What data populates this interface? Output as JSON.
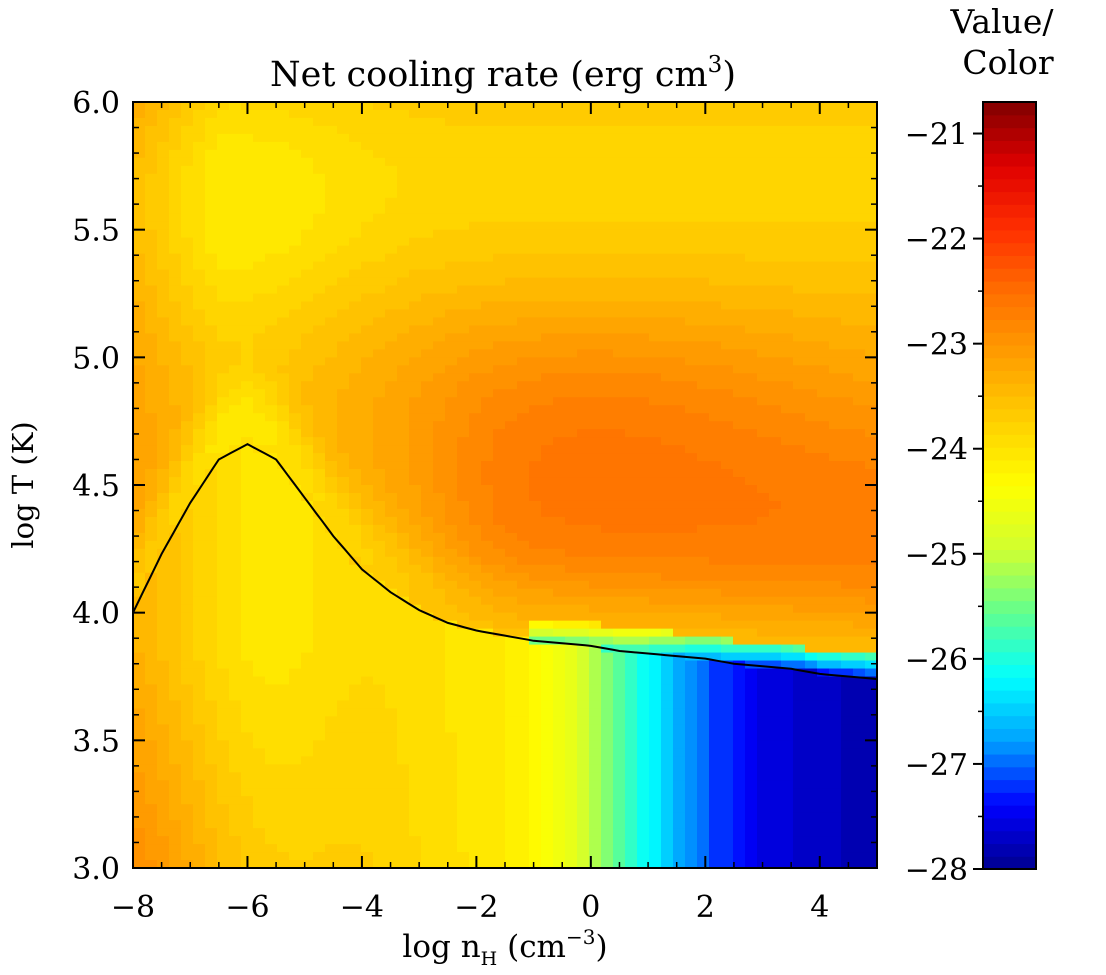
{
  "chart_data": {
    "type": "heatmap",
    "title_main": "Net cooling rate (erg cm",
    "title_sup": "3",
    "title_close": ")",
    "xlabel": {
      "main": "log n",
      "sub": "H",
      "rest": " (cm",
      "sup": "−3",
      "close": ")"
    },
    "ylabel": "log T (K)",
    "xlim": [
      -8,
      5
    ],
    "ylim": [
      3.0,
      6.0
    ],
    "x_ticks": [
      {
        "value": -8,
        "label": "−8"
      },
      {
        "value": -6,
        "label": "−6"
      },
      {
        "value": -4,
        "label": "−4"
      },
      {
        "value": -2,
        "label": "−2"
      },
      {
        "value": 0,
        "label": "0"
      },
      {
        "value": 2,
        "label": "2"
      },
      {
        "value": 4,
        "label": "4"
      }
    ],
    "y_ticks": [
      {
        "value": 3.0,
        "label": "3.0"
      },
      {
        "value": 3.5,
        "label": "3.5"
      },
      {
        "value": 4.0,
        "label": "4.0"
      },
      {
        "value": 4.5,
        "label": "4.5"
      },
      {
        "value": 5.0,
        "label": "5.0"
      },
      {
        "value": 5.5,
        "label": "5.5"
      },
      {
        "value": 6.0,
        "label": "6.0"
      }
    ],
    "colorbar": {
      "title_line1": "Value/",
      "title_line2": "Color",
      "range": [
        -28,
        -20.7
      ],
      "ticks": [
        {
          "value": -21,
          "label": "−21"
        },
        {
          "value": -22,
          "label": "−22"
        },
        {
          "value": -23,
          "label": "−23"
        },
        {
          "value": -24,
          "label": "−24"
        },
        {
          "value": -25,
          "label": "−25"
        },
        {
          "value": -26,
          "label": "−26"
        },
        {
          "value": -27,
          "label": "−27"
        },
        {
          "value": -28,
          "label": "−28"
        }
      ],
      "colors": [
        "#00008f",
        "#0000ff",
        "#00a0ff",
        "#00ffff",
        "#60ff90",
        "#d0ff30",
        "#ffff00",
        "#ffd000",
        "#ffa000",
        "#ff7000",
        "#ff3000",
        "#e00000",
        "#800000"
      ],
      "levels": 60
    },
    "equilibrium_curve": {
      "x": [
        -8,
        -7.5,
        -7,
        -6.5,
        -6,
        -5.5,
        -5,
        -4.5,
        -4,
        -3.5,
        -3,
        -2.5,
        -2,
        -1.5,
        -1,
        -0.5,
        0,
        0.5,
        1,
        1.5,
        2,
        2.5,
        3,
        3.5,
        4,
        4.5,
        5
      ],
      "y": [
        4.0,
        4.23,
        4.43,
        4.6,
        4.66,
        4.6,
        4.45,
        4.3,
        4.17,
        4.08,
        4.01,
        3.96,
        3.93,
        3.91,
        3.89,
        3.88,
        3.87,
        3.85,
        3.84,
        3.83,
        3.82,
        3.8,
        3.79,
        3.78,
        3.76,
        3.75,
        3.74
      ]
    }
  }
}
